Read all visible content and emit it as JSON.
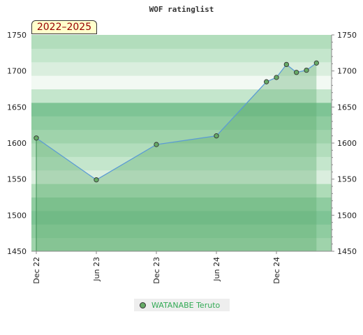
{
  "chart_data": {
    "type": "area",
    "title": "WOF ratinglist",
    "period": "2022–2025",
    "x": [
      "2022-12",
      "2023-06",
      "2023-12",
      "2024-06",
      "2024-11",
      "2024-12",
      "2025-01",
      "2025-02",
      "2025-03",
      "2025-04"
    ],
    "series": [
      {
        "name": "WATANABE Teruto",
        "values": [
          1607,
          1549,
          1598,
          1610,
          1685,
          1691,
          1709,
          1698,
          1701,
          1711
        ]
      }
    ],
    "x_ticks": [
      "Dec 22",
      "Jun 23",
      "Dec 23",
      "Jun 24",
      "Dec 24"
    ],
    "x_tick_dates": [
      "2022-12",
      "2023-06",
      "2023-12",
      "2024-06",
      "2024-12"
    ],
    "y_ticks": [
      1450,
      1500,
      1550,
      1600,
      1650,
      1700,
      1750
    ],
    "ylim": [
      1450,
      1750
    ],
    "y_axis_both_sides": true,
    "legend_position": "bottom-center",
    "colors": {
      "series_line": "#5b9bd5",
      "area_fill": "#5aaa6b",
      "marker_fill": "#66aa66",
      "marker_stroke": "#333333",
      "band_colors": [
        "#9fd3ab",
        "#8fcca0",
        "#7ec495",
        "#8fcca0",
        "#aedcb8",
        "#daeede",
        "#c4e6cc",
        "#b2ddbc",
        "#9fd3ab",
        "#8fcca0",
        "#7ec495",
        "#c4e6cc",
        "#f2f9f3",
        "#daeede",
        "#c4e6cc",
        "#b2ddbc"
      ],
      "legend_text": "#33aa55",
      "period_text": "#990000"
    }
  }
}
